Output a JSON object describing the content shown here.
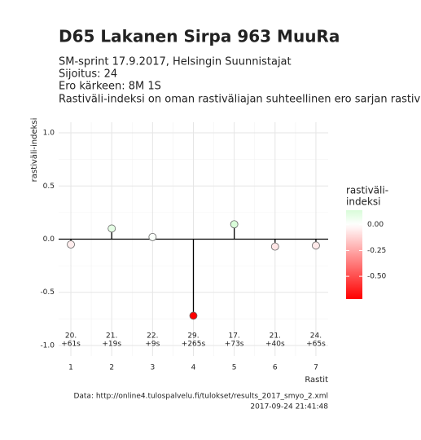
{
  "chart_data": {
    "type": "lollipop",
    "title": "D65 Lakanen Sirpa 963 MuuRa",
    "subtitle": [
      "SM-sprint 17.9.2017, Helsingin Suunnistajat",
      "Sijoitus: 24",
      "Ero kärkeen: 8M 1S",
      "Rastiväli-indeksi on oman rastiväliajan suhteellinen ero sarjan rastiväliajan kes"
    ],
    "y_label": "rastiväli-indeksi",
    "x_label": "Rastit",
    "x": [
      1,
      2,
      3,
      4,
      5,
      6,
      7
    ],
    "values": [
      -0.05,
      0.1,
      0.02,
      -0.72,
      0.14,
      -0.07,
      -0.06
    ],
    "point_labels": [
      [
        "20.",
        "+61s"
      ],
      [
        "21.",
        "+19s"
      ],
      [
        "22.",
        "+9s"
      ],
      [
        "29.",
        "+265s"
      ],
      [
        "17.",
        "+73s"
      ],
      [
        "21.",
        "+40s"
      ],
      [
        "24.",
        "+65s"
      ]
    ],
    "xlim": [
      0.7,
      7.3
    ],
    "xticks": [
      1,
      2,
      3,
      4,
      5,
      6,
      7
    ],
    "ylim": [
      -1.1,
      1.1
    ],
    "yticks": [
      {
        "value": 1,
        "label": "1.0"
      },
      {
        "value": 0.5,
        "label": "0.5"
      },
      {
        "value": 0,
        "label": "0.0"
      },
      {
        "value": -0.5,
        "label": "-0.5"
      },
      {
        "value": -1,
        "label": "-1.0"
      }
    ],
    "grid": true,
    "legend": {
      "title": [
        "rastiväli-",
        "indeksi"
      ],
      "colors": {
        "low": "#ff0000",
        "mid": "#ffffff",
        "high": "#00ee00"
      },
      "limits": [
        -0.72,
        0.14
      ],
      "ticks": [
        {
          "value": 0,
          "label": "0.00"
        },
        {
          "value": -0.25,
          "label": "-0.25"
        },
        {
          "value": -0.5,
          "label": "-0.50"
        }
      ]
    },
    "caption": [
      "Data: http://online4.tulospalvelu.fi/tulokset/results_2017_smyo_2.xml",
      "2017-09-24 21:41:48"
    ]
  }
}
